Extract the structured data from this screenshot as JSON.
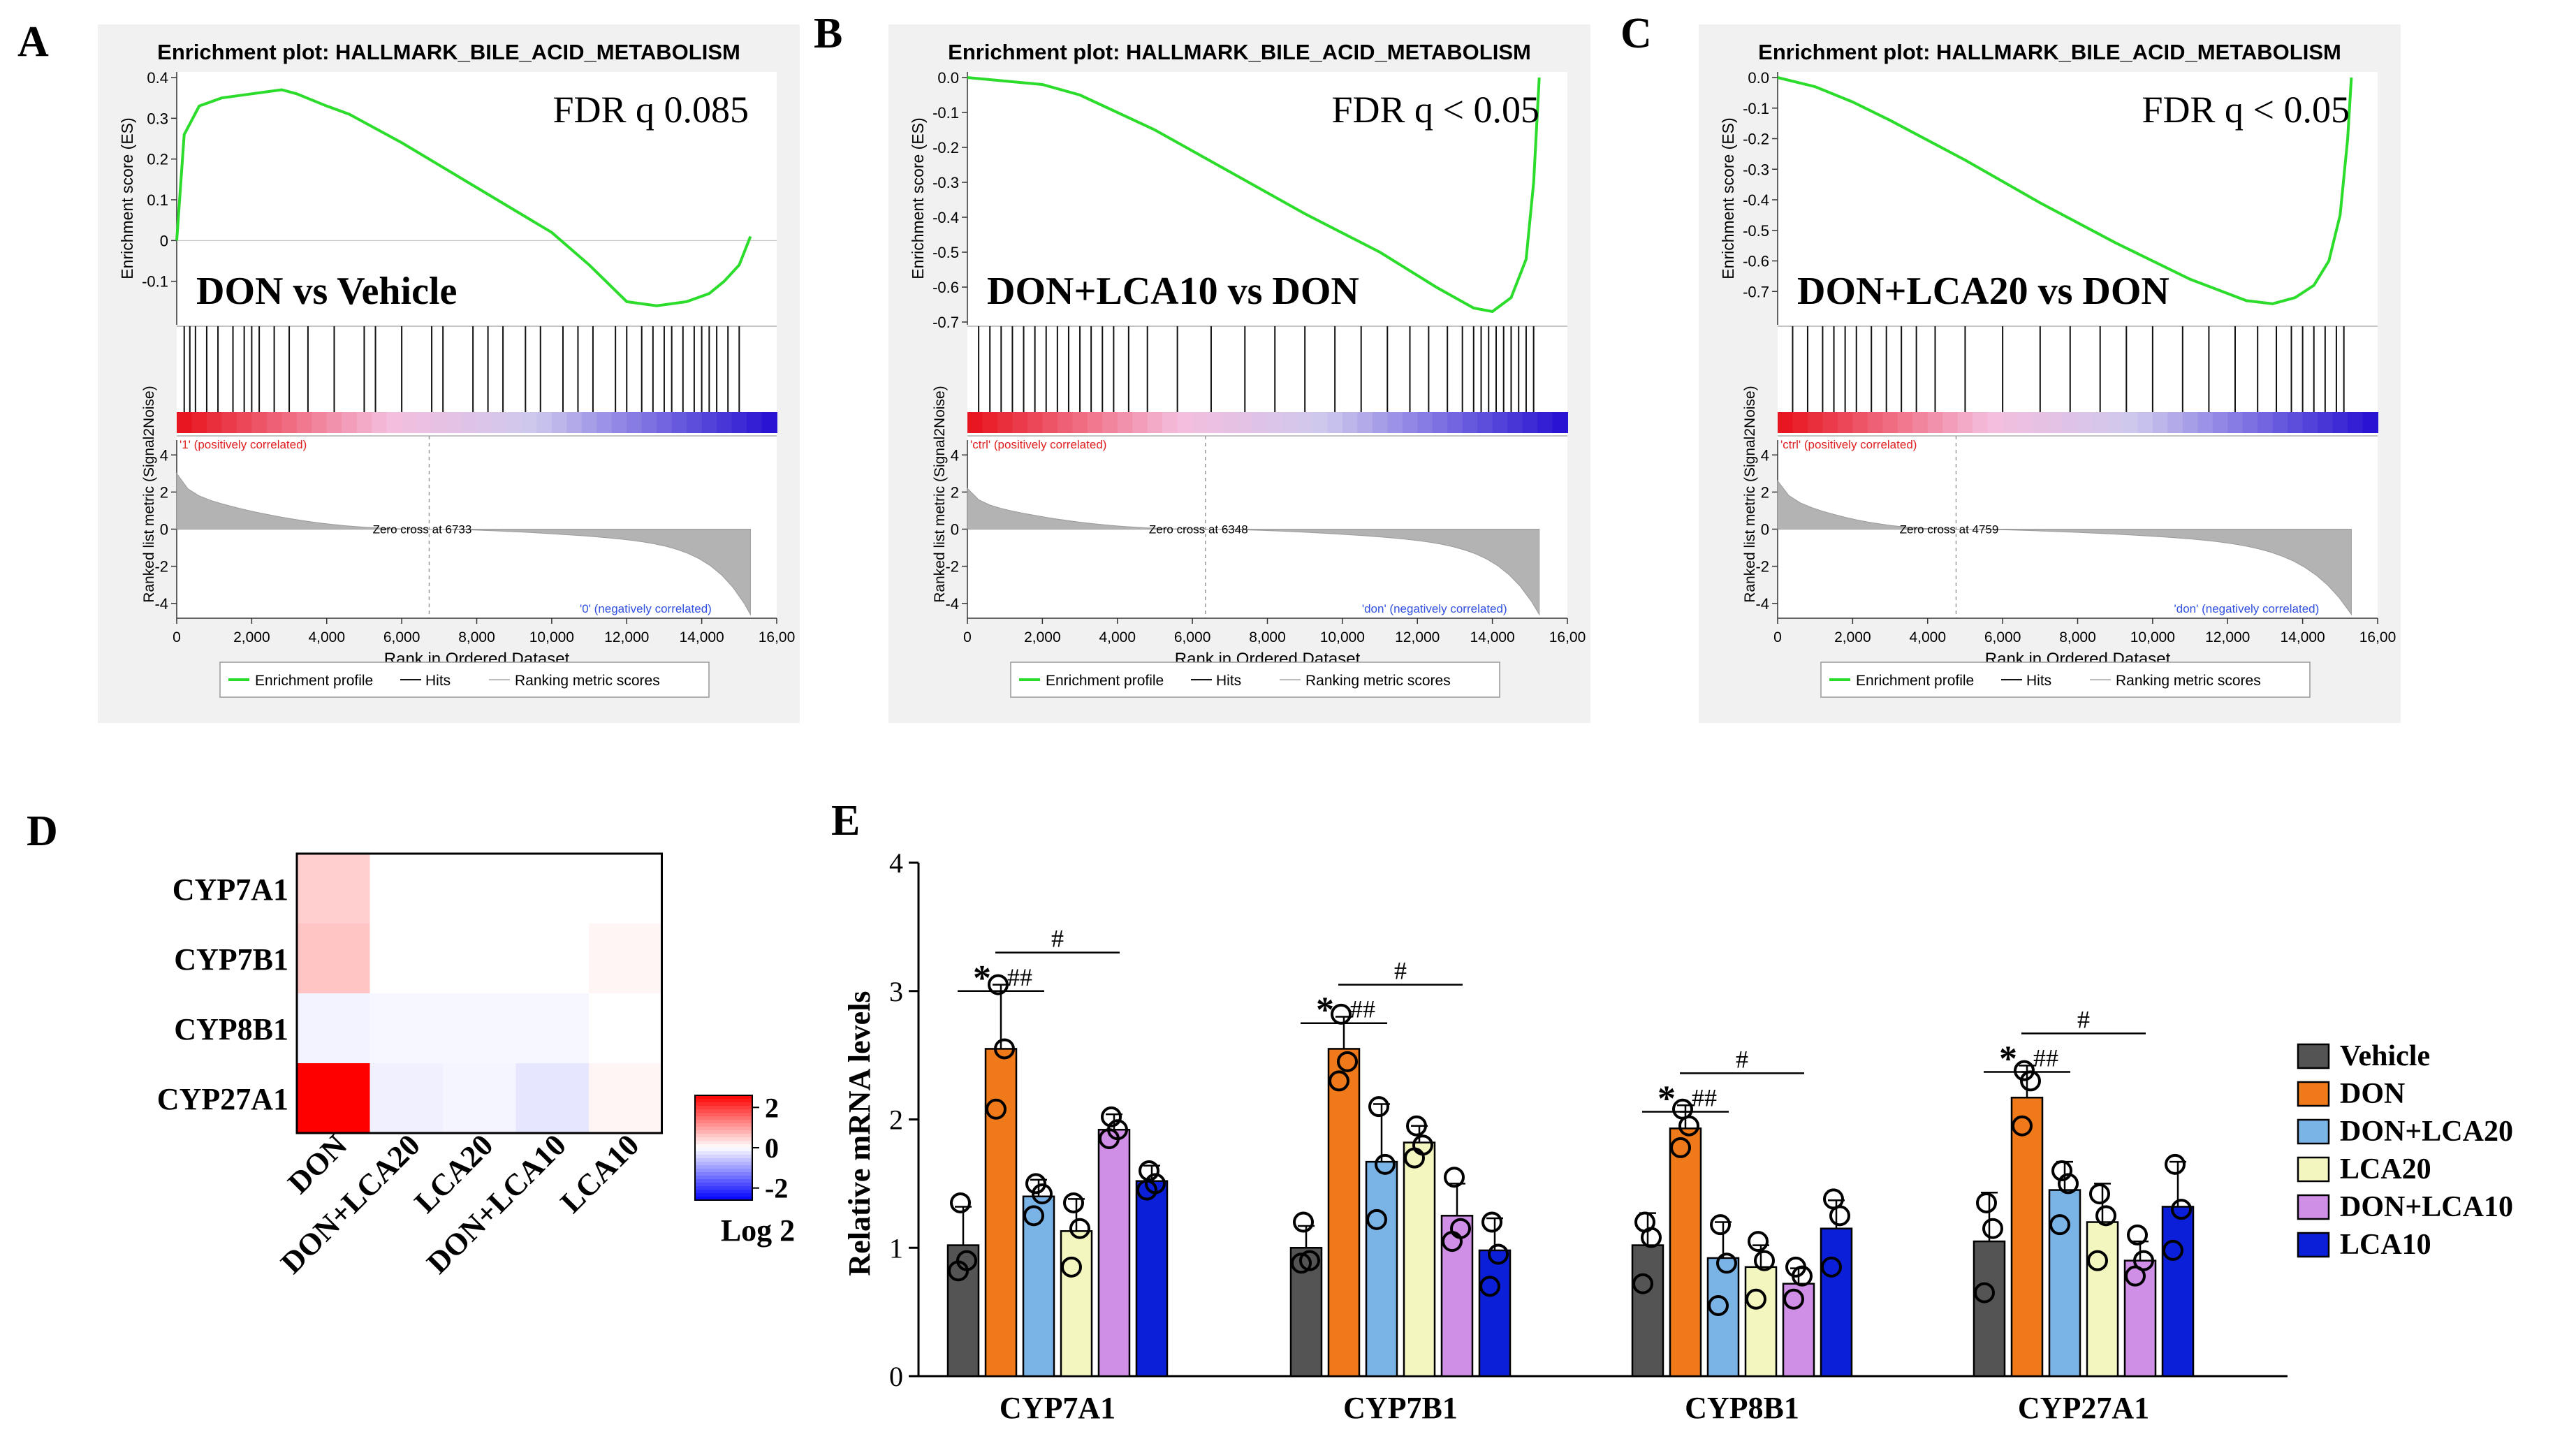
{
  "panel_letters": [
    "A",
    "B",
    "C",
    "D",
    "E"
  ],
  "gsea_common": {
    "title": "Enrichment plot: HALLMARK_BILE_ACID_METABOLISM",
    "es_ylabel": "Enrichment score (ES)",
    "metric_ylabel": "Ranked list metric (Signal2Noise)",
    "xlabel": "Rank in Ordered Dataset",
    "x_ticks": [
      "0",
      "2,000",
      "4,000",
      "6,000",
      "8,000",
      "10,000",
      "12,000",
      "14,000",
      "16,00"
    ],
    "metric_ticks": [
      "4",
      "2",
      "0",
      "-2",
      "-4"
    ],
    "legend": [
      "Enrichment profile",
      "Hits",
      "Ranking metric scores"
    ]
  },
  "chart_data": [
    {
      "type": "line",
      "panel": "A",
      "annotation": "FDR q 0.085",
      "comparison": "DON vs Vehicle",
      "y_ticks": [
        "0.4",
        "0.3",
        "0.2",
        "0.1",
        "0",
        "-0.1"
      ],
      "ylim": [
        -0.2,
        0.4
      ],
      "xlim": [
        0,
        16000
      ],
      "x": [
        0,
        200,
        600,
        1200,
        2000,
        2800,
        3200,
        4000,
        4600,
        6000,
        8000,
        10000,
        11000,
        12000,
        12800,
        13600,
        14200,
        14600,
        15000,
        15300
      ],
      "es": [
        0.0,
        0.26,
        0.33,
        0.35,
        0.36,
        0.37,
        0.36,
        0.33,
        0.31,
        0.24,
        0.13,
        0.02,
        -0.06,
        -0.15,
        -0.16,
        -0.15,
        -0.13,
        -0.1,
        -0.06,
        0.01
      ],
      "pos_label": "'1' (positively correlated)",
      "neg_label": "'0' (negatively correlated)",
      "zero_cross": "Zero cross at 6733",
      "zero_cross_rank": 6733,
      "metric_pos_max": 3.0,
      "metric_neg_min": -4.6,
      "hits": [
        200,
        350,
        500,
        800,
        1100,
        1500,
        1800,
        2000,
        2200,
        2600,
        3000,
        3500,
        4200,
        5000,
        5300,
        6000,
        6800,
        7100,
        7900,
        8300,
        8700,
        9300,
        9700,
        10300,
        10700,
        11100,
        11700,
        12000,
        12400,
        12700,
        13000,
        13200,
        13500,
        13800,
        14000,
        14200,
        14400,
        14700,
        15000
      ]
    },
    {
      "type": "line",
      "panel": "B",
      "annotation": "FDR q < 0.05",
      "comparison": "DON+LCA10 vs DON",
      "y_ticks": [
        "0.0",
        "-0.1",
        "-0.2",
        "-0.3",
        "-0.4",
        "-0.5",
        "-0.6",
        "-0.7"
      ],
      "ylim": [
        -0.7,
        0.0
      ],
      "xlim": [
        0,
        16000
      ],
      "x": [
        0,
        1000,
        2000,
        3000,
        3600,
        5000,
        7000,
        9000,
        11000,
        12500,
        13500,
        14000,
        14500,
        14900,
        15100,
        15250
      ],
      "es": [
        0.0,
        -0.01,
        -0.02,
        -0.05,
        -0.08,
        -0.15,
        -0.27,
        -0.39,
        -0.5,
        -0.6,
        -0.66,
        -0.67,
        -0.63,
        -0.52,
        -0.3,
        0.0
      ],
      "pos_label": "'ctrl' (positively correlated)",
      "neg_label": "'don' (negatively correlated)",
      "zero_cross": "Zero cross at 6348",
      "zero_cross_rank": 6348,
      "metric_pos_max": 2.2,
      "metric_neg_min": -4.6,
      "hits": [
        300,
        600,
        900,
        1200,
        1500,
        1800,
        2100,
        2400,
        2700,
        3000,
        3300,
        3600,
        3900,
        4300,
        4800,
        5600,
        6500,
        7400,
        8200,
        9000,
        9800,
        10500,
        11200,
        11800,
        12300,
        12800,
        13200,
        13500,
        13700,
        13900,
        14100,
        14300,
        14500,
        14700,
        14900,
        15100
      ]
    },
    {
      "type": "line",
      "panel": "C",
      "annotation": "FDR q < 0.05",
      "comparison": "DON+LCA20 vs DON",
      "y_ticks": [
        "0.0",
        "-0.1",
        "-0.2",
        "-0.3",
        "-0.4",
        "-0.5",
        "-0.6",
        "-0.7"
      ],
      "ylim": [
        -0.8,
        0.0
      ],
      "xlim": [
        0,
        16000
      ],
      "x": [
        0,
        1000,
        2000,
        3000,
        5000,
        7000,
        9000,
        11000,
        12500,
        13200,
        13800,
        14300,
        14700,
        15000,
        15200,
        15300
      ],
      "es": [
        0.0,
        -0.03,
        -0.08,
        -0.14,
        -0.27,
        -0.41,
        -0.54,
        -0.66,
        -0.73,
        -0.74,
        -0.72,
        -0.68,
        -0.6,
        -0.45,
        -0.2,
        0.0
      ],
      "pos_label": "'ctrl' (positively correlated)",
      "neg_label": "'don' (negatively correlated)",
      "zero_cross": "Zero cross at 4759",
      "zero_cross_rank": 4759,
      "metric_pos_max": 2.6,
      "metric_neg_min": -4.6,
      "hits": [
        400,
        800,
        1200,
        1500,
        1800,
        2100,
        2500,
        2900,
        3300,
        3700,
        4200,
        5000,
        6000,
        7000,
        7800,
        8600,
        9300,
        10000,
        10800,
        11500,
        12200,
        12800,
        13300,
        13700,
        14000,
        14300,
        14600,
        14900,
        15100
      ]
    },
    {
      "type": "heatmap",
      "panel": "D",
      "rows": [
        "CYP7A1",
        "CYP7B1",
        "CYP8B1",
        "CYP27A1"
      ],
      "columns": [
        "DON",
        "DON+LCA20",
        "LCA20",
        "DON+LCA10",
        "LCA10"
      ],
      "values": [
        [
          0.5,
          0,
          0,
          0,
          0
        ],
        [
          0.6,
          0,
          0,
          0,
          0.1
        ],
        [
          -0.12,
          -0.08,
          -0.08,
          -0.08,
          0
        ],
        [
          2.6,
          -0.15,
          -0.1,
          -0.25,
          0.1
        ]
      ],
      "colorbar_ticks": [
        "2",
        "0",
        "-2"
      ],
      "colorbar_range": [
        -2.6,
        2.6
      ],
      "colorbar_label": "Log 2"
    },
    {
      "type": "bar",
      "panel": "E",
      "ylabel": "Relative mRNA levels",
      "ylim": [
        0,
        4
      ],
      "y_ticks": [
        "0",
        "1",
        "2",
        "3",
        "4"
      ],
      "categories": [
        "CYP7A1",
        "CYP7B1",
        "CYP8B1",
        "CYP27A1"
      ],
      "series": [
        {
          "name": "Vehicle",
          "color": "#545454",
          "values": [
            1.02,
            1.0,
            1.02,
            1.05
          ],
          "errors": [
            0.3,
            0.17,
            0.25,
            0.38
          ],
          "points": [
            [
              1.35,
              0.9,
              0.82
            ],
            [
              1.2,
              0.9,
              0.88
            ],
            [
              1.2,
              1.08,
              0.72
            ],
            [
              1.35,
              1.15,
              0.65
            ]
          ]
        },
        {
          "name": "DON",
          "color": "#f07a1a",
          "values": [
            2.55,
            2.55,
            1.93,
            2.17
          ],
          "errors": [
            0.5,
            0.25,
            0.18,
            0.25
          ],
          "points": [
            [
              3.05,
              2.55,
              2.08
            ],
            [
              2.82,
              2.45,
              2.3
            ],
            [
              2.08,
              1.95,
              1.78
            ],
            [
              2.38,
              2.3,
              1.95
            ]
          ]
        },
        {
          "name": "DON+LCA20",
          "color": "#7ab3e6",
          "values": [
            1.4,
            1.67,
            0.92,
            1.45
          ],
          "errors": [
            0.13,
            0.45,
            0.28,
            0.22
          ],
          "points": [
            [
              1.5,
              1.42,
              1.25
            ],
            [
              2.1,
              1.65,
              1.22
            ],
            [
              1.18,
              0.88,
              0.55
            ],
            [
              1.6,
              1.5,
              1.18
            ]
          ]
        },
        {
          "name": "LCA20",
          "color": "#f4f6c0",
          "values": [
            1.13,
            1.82,
            0.85,
            1.2
          ],
          "errors": [
            0.25,
            0.13,
            0.17,
            0.3
          ],
          "points": [
            [
              1.35,
              1.15,
              0.85
            ],
            [
              1.95,
              1.8,
              1.7
            ],
            [
              1.05,
              0.9,
              0.6
            ],
            [
              1.42,
              1.25,
              0.9
            ]
          ]
        },
        {
          "name": "DON+LCA10",
          "color": "#cf8fe6",
          "values": [
            1.92,
            1.25,
            0.72,
            0.9
          ],
          "errors": [
            0.12,
            0.25,
            0.12,
            0.15
          ],
          "points": [
            [
              2.02,
              1.92,
              1.85
            ],
            [
              1.55,
              1.15,
              1.05
            ],
            [
              0.85,
              0.78,
              0.6
            ],
            [
              1.1,
              0.9,
              0.78
            ]
          ]
        },
        {
          "name": "LCA10",
          "color": "#0b1fd8",
          "values": [
            1.52,
            0.98,
            1.15,
            1.32
          ],
          "errors": [
            0.12,
            0.25,
            0.22,
            0.35
          ],
          "points": [
            [
              1.6,
              1.5,
              1.45
            ],
            [
              1.2,
              0.95,
              0.7
            ],
            [
              1.38,
              1.25,
              0.85
            ],
            [
              1.65,
              1.3,
              0.98
            ]
          ]
        }
      ],
      "significance": {
        "star": "*",
        "double_hash": "##",
        "single_hash": "#"
      }
    }
  ]
}
